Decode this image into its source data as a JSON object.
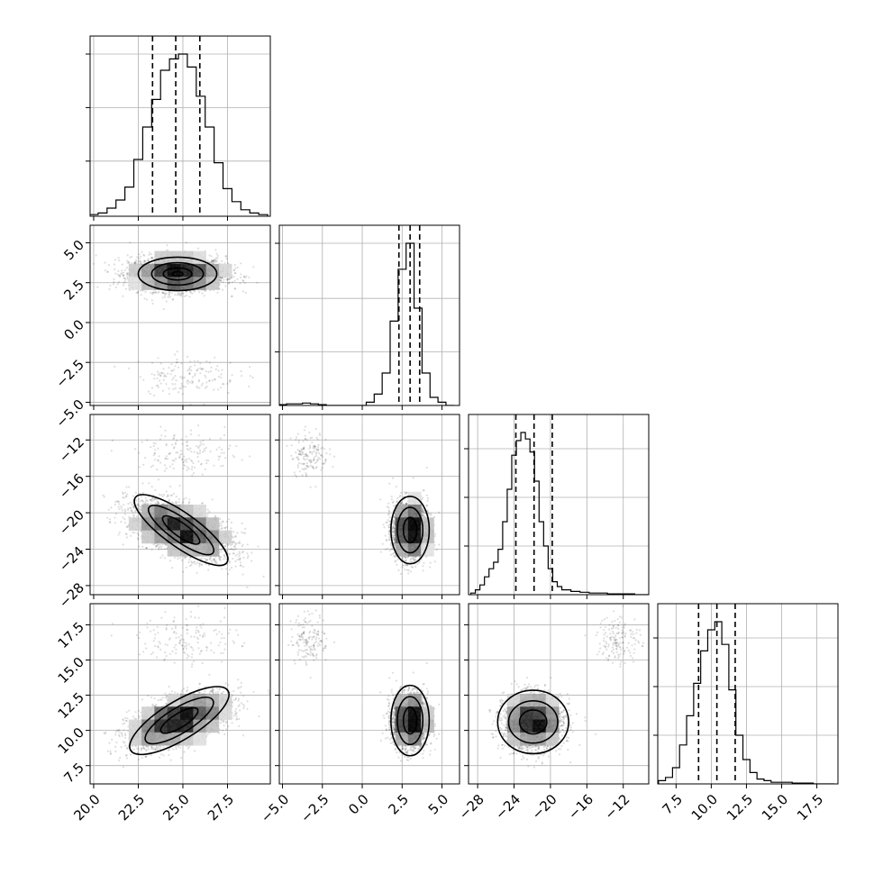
{
  "chart_data": {
    "type": "corner",
    "grid": true,
    "variables": [
      {
        "range": [
          19.8,
          29.9
        ],
        "ticks": [
          20.0,
          22.5,
          25.0,
          27.5
        ],
        "tick_labels": [
          "20.0",
          "22.5",
          "25.0",
          "27.5"
        ],
        "quantiles": [
          23.3,
          24.6,
          25.95
        ],
        "hist_x": [
          20.0,
          20.5,
          21.0,
          21.5,
          22.0,
          22.5,
          23.0,
          23.5,
          24.0,
          24.5,
          25.0,
          25.5,
          26.0,
          26.5,
          27.0,
          27.5,
          28.0,
          28.5,
          29.0,
          29.5
        ],
        "hist_y": [
          0.01,
          0.02,
          0.05,
          0.1,
          0.18,
          0.35,
          0.55,
          0.72,
          0.9,
          0.97,
          1.0,
          0.92,
          0.74,
          0.55,
          0.33,
          0.17,
          0.09,
          0.04,
          0.02,
          0.01
        ],
        "hist_ticks": [
          0.34,
          0.67,
          1.0
        ]
      },
      {
        "range": [
          -5.2,
          6.1
        ],
        "ticks": [
          -5.0,
          -2.5,
          0.0,
          2.5,
          5.0
        ],
        "tick_labels": [
          "−5.0",
          "−2.5",
          "0.0",
          "2.5",
          "5.0"
        ],
        "quantiles": [
          2.3,
          3.0,
          3.6
        ],
        "hist_x": [
          -5.0,
          -4.5,
          -4.0,
          -3.5,
          -3.0,
          -2.5,
          -2.0,
          -1.5,
          -1.0,
          -0.5,
          0.0,
          0.5,
          1.0,
          1.5,
          2.0,
          2.5,
          3.0,
          3.5,
          4.0,
          4.5,
          5.0,
          5.5
        ],
        "hist_y": [
          0.005,
          0.01,
          0.01,
          0.015,
          0.01,
          0.005,
          0.0,
          0.0,
          0.0,
          0.0,
          0.0,
          0.02,
          0.07,
          0.2,
          0.52,
          0.84,
          1.0,
          0.6,
          0.2,
          0.05,
          0.02,
          0.0
        ],
        "hist_ticks": [
          0.33,
          0.66,
          1.0
        ]
      },
      {
        "range": [
          -29,
          -9.2
        ],
        "ticks": [
          -28,
          -24,
          -20,
          -16,
          -12
        ],
        "tick_labels": [
          "−28",
          "−24",
          "−20",
          "−16",
          "−12"
        ],
        "quantiles": [
          -23.8,
          -21.8,
          -19.8
        ],
        "hist_x": [
          -28.5,
          -28.0,
          -27.5,
          -27.0,
          -26.5,
          -26.0,
          -25.5,
          -25.0,
          -24.5,
          -24.0,
          -23.5,
          -23.0,
          -22.5,
          -22.0,
          -21.5,
          -21.0,
          -20.5,
          -20.0,
          -19.5,
          -19.0,
          -18.5,
          -18.0,
          -17.5,
          -17.0,
          -16.5,
          -16.0,
          -15.5,
          -15.0,
          -14.5,
          -14.0,
          -13.5,
          -13.0,
          -12.5,
          -12.0,
          -11.5,
          -11.0,
          -10.5,
          -10.0,
          -9.5
        ],
        "hist_y": [
          0.01,
          0.03,
          0.06,
          0.11,
          0.16,
          0.2,
          0.28,
          0.45,
          0.65,
          0.86,
          0.95,
          1.0,
          0.96,
          0.88,
          0.7,
          0.45,
          0.3,
          0.16,
          0.08,
          0.05,
          0.03,
          0.03,
          0.02,
          0.02,
          0.015,
          0.015,
          0.01,
          0.01,
          0.01,
          0.01,
          0.005,
          0.005,
          0.005,
          0.005,
          0.005,
          0.005,
          0.0,
          0.0,
          0.0
        ],
        "hist_ticks": [
          0.3,
          0.6,
          0.9
        ]
      },
      {
        "range": [
          6.2,
          19.0
        ],
        "ticks": [
          7.5,
          10.0,
          12.5,
          15.0,
          17.5
        ],
        "tick_labels": [
          "7.5",
          "10.0",
          "12.5",
          "15.0",
          "17.5"
        ],
        "quantiles": [
          9.1,
          10.4,
          11.7
        ],
        "hist_x": [
          6.5,
          7.0,
          7.5,
          8.0,
          8.5,
          9.0,
          9.5,
          10.0,
          10.5,
          11.0,
          11.5,
          12.0,
          12.5,
          13.0,
          13.5,
          14.0,
          14.5,
          15.0,
          15.5,
          16.0,
          16.5,
          17.0,
          17.5,
          18.0,
          18.5
        ],
        "hist_y": [
          0.02,
          0.04,
          0.1,
          0.24,
          0.42,
          0.62,
          0.82,
          0.95,
          1.0,
          0.86,
          0.58,
          0.3,
          0.15,
          0.07,
          0.03,
          0.02,
          0.01,
          0.01,
          0.01,
          0.005,
          0.005,
          0.005,
          0.0,
          0.0,
          0.0
        ],
        "hist_ticks": [
          0.3,
          0.6,
          0.9
        ]
      }
    ],
    "pairs": [
      {
        "row": 1,
        "col": 0,
        "modes": [
          {
            "weight": 0.94,
            "mean": [
              24.7,
              3.05
            ],
            "sd": [
              1.35,
              0.55
            ],
            "corr": 0.0
          },
          {
            "weight": 0.06,
            "mean": [
              25.3,
              -3.3
            ],
            "sd": [
              1.4,
              0.6
            ],
            "corr": 0.0
          }
        ],
        "contours": [
          {
            "center": [
              24.7,
              3.05
            ],
            "radii": [
              2.2,
              1.05
            ],
            "angle": 0
          },
          {
            "center": [
              24.7,
              3.05
            ],
            "radii": [
              1.45,
              0.7
            ],
            "angle": 0
          },
          {
            "center": [
              24.7,
              3.05
            ],
            "radii": [
              0.8,
              0.38
            ],
            "angle": 0
          },
          {
            "center": [
              24.7,
              3.05
            ],
            "radii": [
              0.3,
              0.14
            ],
            "angle": 0
          }
        ]
      },
      {
        "row": 2,
        "col": 0,
        "modes": [
          {
            "weight": 0.94,
            "mean": [
              24.9,
              -21.9
            ],
            "sd": [
              1.45,
              1.6
            ],
            "corr": -0.55
          },
          {
            "weight": 0.06,
            "mean": [
              25.3,
              -13.5
            ],
            "sd": [
              1.4,
              1.2
            ],
            "corr": 0.0
          }
        ],
        "contours": [
          {
            "center": [
              24.9,
              -21.9
            ],
            "radii": [
              3.15,
              1.85
            ],
            "angle": -0.62
          },
          {
            "center": [
              24.9,
              -21.9
            ],
            "radii": [
              2.2,
              1.25
            ],
            "angle": -0.62
          },
          {
            "center": [
              24.9,
              -21.9
            ],
            "radii": [
              1.25,
              0.75
            ],
            "angle": -0.62
          }
        ]
      },
      {
        "row": 2,
        "col": 1,
        "modes": [
          {
            "weight": 0.94,
            "mean": [
              3.0,
              -21.9
            ],
            "sd": [
              0.55,
              1.6
            ],
            "corr": 0.0
          },
          {
            "weight": 0.06,
            "mean": [
              -3.3,
              -13.5
            ],
            "sd": [
              0.6,
              1.2
            ],
            "corr": 0.0
          }
        ],
        "contours": [
          {
            "center": [
              3.0,
              -21.9
            ],
            "radii": [
              1.2,
              3.7
            ],
            "angle": 0
          },
          {
            "center": [
              3.0,
              -21.9
            ],
            "radii": [
              0.8,
              2.5
            ],
            "angle": 0
          },
          {
            "center": [
              3.0,
              -21.9
            ],
            "radii": [
              0.42,
              1.4
            ],
            "angle": 0
          }
        ]
      },
      {
        "row": 3,
        "col": 0,
        "modes": [
          {
            "weight": 0.94,
            "mean": [
              24.8,
              10.7
            ],
            "sd": [
              1.4,
              0.95
            ],
            "corr": 0.55
          },
          {
            "weight": 0.06,
            "mean": [
              25.3,
              16.5
            ],
            "sd": [
              1.4,
              0.9
            ],
            "corr": 0.0
          }
        ],
        "contours": [
          {
            "center": [
              24.8,
              10.7
            ],
            "radii": [
              3.2,
              1.35
            ],
            "angle": 0.55
          },
          {
            "center": [
              24.8,
              10.7
            ],
            "radii": [
              2.2,
              0.9
            ],
            "angle": 0.55
          },
          {
            "center": [
              24.8,
              10.7
            ],
            "radii": [
              1.2,
              0.5
            ],
            "angle": 0.55
          }
        ]
      },
      {
        "row": 3,
        "col": 1,
        "modes": [
          {
            "weight": 0.94,
            "mean": [
              3.0,
              10.7
            ],
            "sd": [
              0.55,
              0.95
            ],
            "corr": 0.0
          },
          {
            "weight": 0.06,
            "mean": [
              -3.3,
              16.5
            ],
            "sd": [
              0.6,
              0.9
            ],
            "corr": 0.0
          }
        ],
        "contours": [
          {
            "center": [
              3.0,
              10.7
            ],
            "radii": [
              1.2,
              2.5
            ],
            "angle": 0
          },
          {
            "center": [
              3.0,
              10.7
            ],
            "radii": [
              0.8,
              1.7
            ],
            "angle": 0
          },
          {
            "center": [
              3.0,
              10.7
            ],
            "radii": [
              0.42,
              0.95
            ],
            "angle": 0
          }
        ]
      },
      {
        "row": 3,
        "col": 2,
        "modes": [
          {
            "weight": 0.94,
            "mean": [
              -21.9,
              10.6
            ],
            "sd": [
              1.6,
              0.95
            ],
            "corr": 0.0
          },
          {
            "weight": 0.06,
            "mean": [
              -12.5,
              16.5
            ],
            "sd": [
              1.2,
              0.9
            ],
            "corr": 0.0
          }
        ],
        "contours": [
          {
            "center": [
              -21.9,
              10.6
            ],
            "radii": [
              3.9,
              2.25
            ],
            "angle": 0
          },
          {
            "center": [
              -21.9,
              10.6
            ],
            "radii": [
              2.7,
              1.5
            ],
            "angle": 0
          },
          {
            "center": [
              -21.9,
              10.6
            ],
            "radii": [
              1.5,
              0.85
            ],
            "angle": 0
          }
        ]
      }
    ]
  }
}
